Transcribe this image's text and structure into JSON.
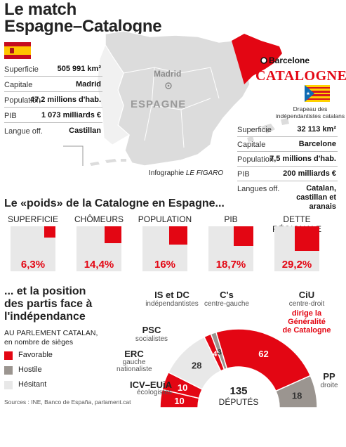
{
  "title_line1": "Le match",
  "title_line2": "Espagne–Catalogne",
  "colors": {
    "red": "#e30613",
    "grey_light": "#e8e8e8",
    "grey_dark": "#9b9590",
    "map_grey": "#dcdcdc"
  },
  "spain": {
    "rows": [
      {
        "label": "Superficie",
        "value": "505 991 km²"
      },
      {
        "label": "Capitale",
        "value": "Madrid"
      },
      {
        "label": "Population",
        "value": "47,2 millions d'hab."
      },
      {
        "label": "PIB",
        "value": "1 073 milliards €"
      },
      {
        "label": "Langue off.",
        "value": "Castillan"
      }
    ]
  },
  "map": {
    "madrid": "Madrid",
    "espagne": "ESPAGNE",
    "barcelone": "Barcelone",
    "catalogne": "CATALOGNE",
    "credit_prefix": "Infographie ",
    "credit_brand": "LE FIGARO"
  },
  "catalonia": {
    "flag_caption": "Drapeau des indépendantistes catalans",
    "rows": [
      {
        "label": "Superficie",
        "value": "32 113 km²"
      },
      {
        "label": "Capitale",
        "value": "Barcelone"
      },
      {
        "label": "Population",
        "value": "7,5 millions d'hab."
      },
      {
        "label": "PIB",
        "value": "200 milliards €"
      },
      {
        "label": "Langues off.",
        "value": "Catalan, castillan et aranais"
      }
    ]
  },
  "weights_title": "Le «poids» de la Catalogne en Espagne...",
  "chart_data": [
    {
      "type": "bar",
      "title": "Le «poids» de la Catalogne en Espagne...",
      "categories": [
        "SUPERFICIE",
        "CHÔMEURS",
        "POPULATION",
        "PIB",
        "DETTE RÉGIONALE"
      ],
      "values": [
        6.3,
        14.4,
        16,
        18.7,
        29.2
      ],
      "value_labels": [
        "6,3%",
        "14,4%",
        "16%",
        "18,7%",
        "29,2%"
      ],
      "unit": "%"
    },
    {
      "type": "pie",
      "title": "... et la position des partis face à l'indépendance",
      "subtitle": "AU PARLEMENT CATALAN, en nombre de sièges",
      "total": 135,
      "total_label": "DÉPUTÉS",
      "slices": [
        {
          "party": "ICV–EUiA",
          "desc": "écologistes",
          "seats": 10,
          "position": "Favorable"
        },
        {
          "party": "ERC",
          "desc": "gauche nationaliste",
          "seats": 10,
          "position": "Favorable"
        },
        {
          "party": "PSC",
          "desc": "socialistes",
          "seats": 28,
          "position": "Hésitant"
        },
        {
          "party": "IS et DC",
          "desc": "indépendantistes",
          "seats": 4,
          "position": "Favorable"
        },
        {
          "party": "C's",
          "desc": "centre-gauche",
          "seats": 3,
          "position": "Hostile"
        },
        {
          "party": "CiU",
          "desc": "centre-droit",
          "seats": 62,
          "position": "Favorable"
        },
        {
          "party": "PP",
          "desc": "droite",
          "seats": 18,
          "position": "Hostile"
        }
      ],
      "legend": [
        {
          "label": "Favorable",
          "color": "#e30613"
        },
        {
          "label": "Hostile",
          "color": "#9b9590"
        },
        {
          "label": "Hésitant",
          "color": "#e8e8e8"
        }
      ]
    }
  ],
  "parties_title_1": "... et la position",
  "parties_title_2": "des partis face à",
  "parties_title_3": "l'indépendance",
  "parl_sub_1": "AU PARLEMENT CATALAN,",
  "parl_sub_2": "en nombre de sièges",
  "ciu_note_1": "dirige la Généralité",
  "ciu_note_2": "de Catalogne",
  "total_value": "135",
  "total_label": "DÉPUTÉS",
  "sources": "Sources : INE, Banco de España, parlament.cat"
}
